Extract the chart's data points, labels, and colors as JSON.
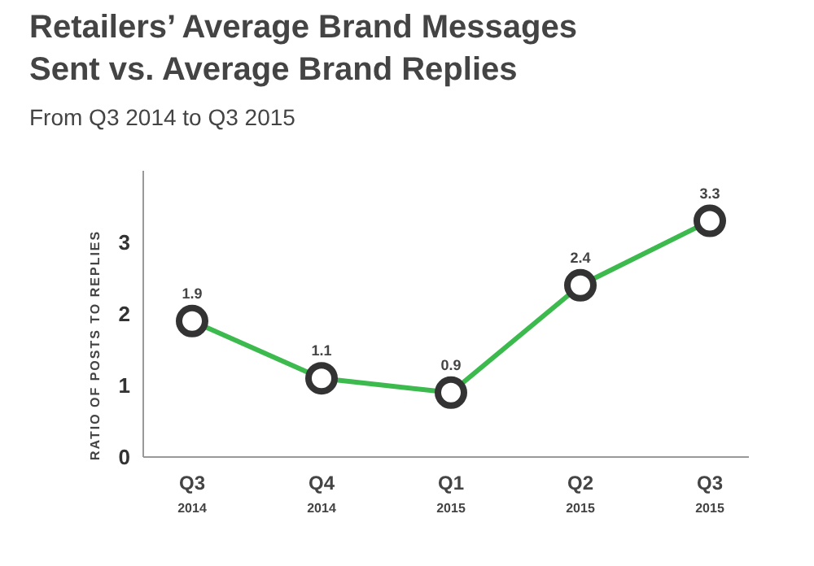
{
  "chart_data": {
    "type": "line",
    "title": "Retailers’ Average Brand Messages Sent vs. Average Brand Replies",
    "subtitle": "From Q3 2014 to Q3 2015",
    "ylabel": "RATIO OF POSTS TO REPLIES",
    "categories": [
      "Q3 2014",
      "Q4 2014",
      "Q1 2015",
      "Q2 2015",
      "Q3 2015"
    ],
    "series": [
      {
        "color": "#3dba4e",
        "values": [
          1.9,
          1.1,
          0.9,
          2.4,
          3.3
        ]
      }
    ],
    "ylim": [
      0,
      4
    ],
    "yticks": [
      0,
      1,
      2,
      3
    ],
    "data_labels": true,
    "marker": "circle",
    "grid": false,
    "legend": false
  }
}
